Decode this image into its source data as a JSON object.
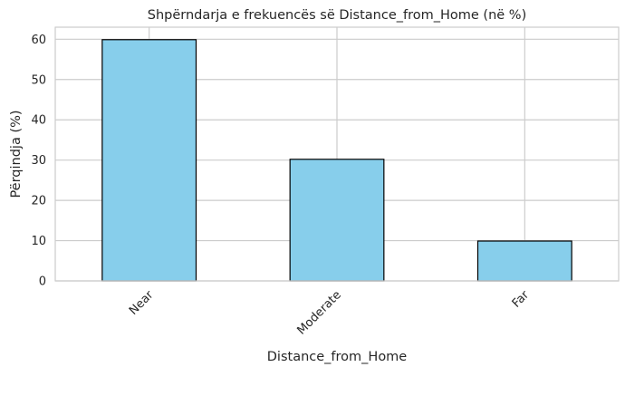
{
  "chart_data": {
    "type": "bar",
    "title": "Shpërndarja e frekuencës së Distance_from_Home (në %)",
    "xlabel": "Distance_from_Home",
    "ylabel": "Përqindja (%)",
    "categories": [
      "Near",
      "Moderate",
      "Far"
    ],
    "values": [
      59.9,
      30.2,
      9.9
    ],
    "ylim": [
      0,
      63
    ],
    "yticks": [
      0,
      10,
      20,
      30,
      40,
      50,
      60
    ],
    "grid": true,
    "colors": {
      "bar_fill": "#87CEEB",
      "bar_edge": "#000000",
      "grid": "#cccccc",
      "frame": "#cccccc"
    }
  }
}
